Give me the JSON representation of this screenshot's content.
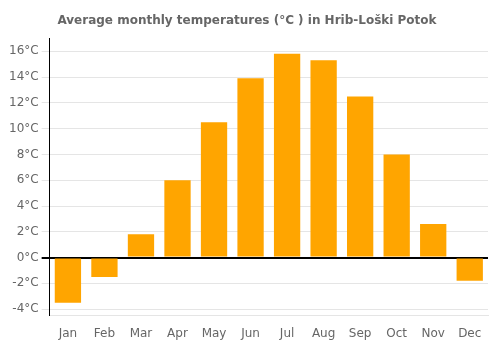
{
  "chart_data": {
    "type": "bar",
    "title": "Average monthly temperatures (°C ) in Hrib-Loški Potok",
    "categories": [
      "Jan",
      "Feb",
      "Mar",
      "Apr",
      "May",
      "Jun",
      "Jul",
      "Aug",
      "Sep",
      "Oct",
      "Nov",
      "Dec"
    ],
    "values": [
      -3.5,
      -1.5,
      1.8,
      6.0,
      10.5,
      13.9,
      15.8,
      15.3,
      12.5,
      8.0,
      2.6,
      -1.8
    ],
    "color": "#FFA500",
    "ylim": [
      -4.5,
      17
    ],
    "yticks": [
      {
        "value": -4,
        "label": "-4°C"
      },
      {
        "value": -2,
        "label": "-2°C"
      },
      {
        "value": 0,
        "label": "0°C"
      },
      {
        "value": 2,
        "label": "2°C"
      },
      {
        "value": 4,
        "label": "4°C"
      },
      {
        "value": 6,
        "label": "6°C"
      },
      {
        "value": 8,
        "label": "8°C"
      },
      {
        "value": 10,
        "label": "10°C"
      },
      {
        "value": 12,
        "label": "12°C"
      },
      {
        "value": 14,
        "label": "14°C"
      },
      {
        "value": 16,
        "label": "16°C"
      }
    ],
    "grid": true
  }
}
